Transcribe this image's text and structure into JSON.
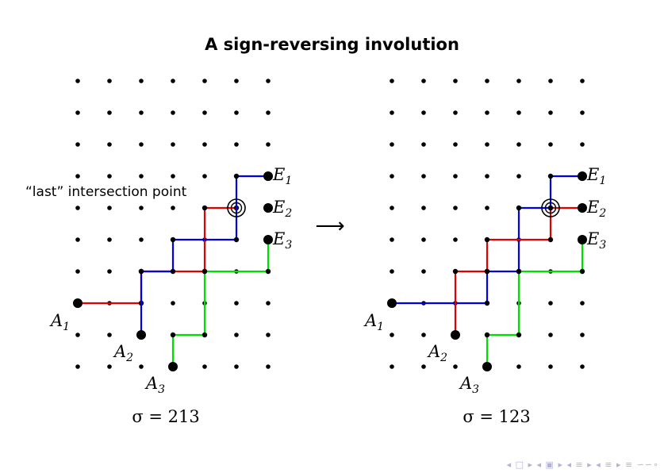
{
  "title": "A sign-reversing involution",
  "annotation": "“last” intersection point",
  "transform_arrow": "⟶",
  "nav_symbols": "◂ □ ▸ ◂ ▣ ▸ ◂ ≡ ▸ ◂ ≡ ▸  ≡  ∽∽∘",
  "colors": {
    "red": "#e00000",
    "blue": "#0000e0",
    "green": "#00e000",
    "circle": "#000000"
  },
  "panels": [
    {
      "sigma_text": "σ = 213",
      "labels": {
        "A1": "A",
        "A1_sub": "1",
        "A2": "A",
        "A2_sub": "2",
        "A3": "A",
        "A3_sub": "3",
        "E1": "E",
        "E1_sub": "1",
        "E2": "E",
        "E2_sub": "2",
        "E3": "E",
        "E3_sub": "3"
      }
    },
    {
      "sigma_text": "σ = 123",
      "labels": {
        "A1": "A",
        "A1_sub": "1",
        "A2": "A",
        "A2_sub": "2",
        "A3": "A",
        "A3_sub": "3",
        "E1": "E",
        "E1_sub": "1",
        "E2": "E",
        "E2_sub": "2",
        "E3": "E",
        "E3_sub": "3"
      }
    }
  ]
}
